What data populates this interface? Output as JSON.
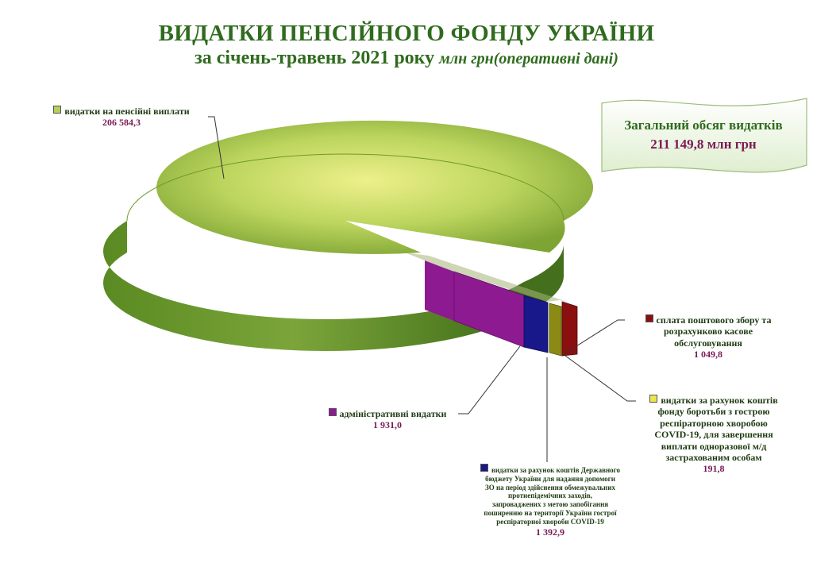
{
  "header": {
    "title": "ВИДАТКИ ПЕНСІЙНОГО ФОНДУ УКРАЇНИ",
    "subtitle": "за січень-травень 2021 року",
    "unit_note": "млн грн(оперативні дані)"
  },
  "total_box": {
    "label": "Загальний обсяг видатків",
    "value": "211 149,8 млн грн"
  },
  "colors": {
    "pension": "#b4cf5a",
    "admin": "#8e1a92",
    "state_budget": "#18188a",
    "covid": "#8a8a14",
    "postal": "#8a1010"
  },
  "chart_data": {
    "type": "pie",
    "title": "ВИДАТКИ ПЕНСІЙНОГО ФОНДУ УКРАЇНИ",
    "subtitle": "за січень-травень 2021 року млн грн(оперативні дані)",
    "three_d": true,
    "exploded": [
      "адміністративні видатки",
      "видатки за рахунок коштів Державного бюджету",
      "видатки за рахунок коштів фонду боротьби з COVID-19",
      "сплата поштового збору"
    ],
    "slices": [
      {
        "name": "видатки на пенсійні виплати",
        "value": 206584.3,
        "label": "206 584,3",
        "color": "#b4cf5a"
      },
      {
        "name": "сплата поштового збору та розрахунково касове обслуговування",
        "value": 1049.8,
        "label": "1 049,8",
        "color": "#8a1010"
      },
      {
        "name": "видатки за рахунок коштів фонду боротьби з гострою респіраторною хворобою COVID-19, для завершення виплати одноразової м/д застрахованим особам",
        "value": 191.8,
        "label": "191,8",
        "color": "#8a8a14"
      },
      {
        "name": "видатки за рахунок коштів Державного бюджету України для надання допомоги ЗО на період здійснення обмежувальних протиепідемічних заходів, запроваджених з метою запобігання поширенню на території України гострої респіраторної хвороби COVID-19",
        "value": 1392.9,
        "label": "1 392,9",
        "color": "#18188a"
      },
      {
        "name": "адміністративні видатки",
        "value": 1931.0,
        "label": "1 931,0",
        "color": "#8e1a92"
      }
    ]
  },
  "labels": {
    "pension": {
      "lines": [
        "видатки на пенсійні виплати"
      ],
      "value": "206 584,3"
    },
    "postal": {
      "lines": [
        "сплата поштового збору та",
        "розрахунково касове",
        "обслуговування"
      ],
      "value": "1 049,8"
    },
    "covid": {
      "lines": [
        "видатки за рахунок коштів",
        "фонду боротьби з гострою",
        "респіраторною хворобою",
        "COVID-19,  для завершення",
        "виплати одноразової м/д",
        "застрахованим особам"
      ],
      "value": "191,8"
    },
    "state_budget": {
      "lines": [
        "видатки за рахунок коштів Державного",
        "бюджету України для надання допомоги",
        "ЗО на період здійснення обмежувальних",
        "протиепідемічних заходів,",
        "запроваджених з метою запобігання",
        "поширенню на території України гострої",
        "респіраторної хвороби COVID-19"
      ],
      "value": "1 392,9"
    },
    "admin": {
      "lines": [
        "адміністративні видатки"
      ],
      "value": "1 931,0"
    }
  }
}
